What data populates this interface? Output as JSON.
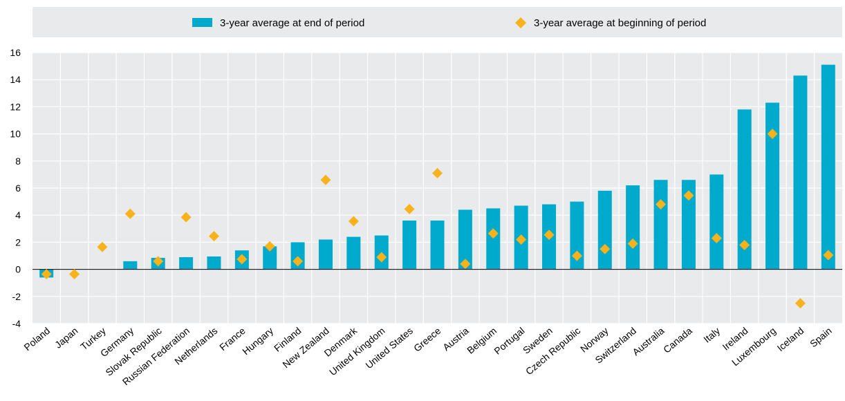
{
  "chart_data": {
    "type": "bar",
    "categories": [
      "Poland",
      "Japan",
      "Turkey",
      "Germany",
      "Slovak Republic",
      "Russian Federation",
      "Netherlands",
      "France",
      "Hungary",
      "Finland",
      "New Zealand",
      "Denmark",
      "United Kingdom",
      "United States",
      "Greece",
      "Austria",
      "Belgium",
      "Portugal",
      "Sweden",
      "Czech Republic",
      "Norway",
      "Switzerland",
      "Australia",
      "Canada",
      "Italy",
      "Ireland",
      "Luxembourg",
      "Iceland",
      "Spain"
    ],
    "series": [
      {
        "name": "3-year average at end of period",
        "mark": "bar",
        "color": "#00aacc",
        "values": [
          -0.6,
          null,
          null,
          0.6,
          0.85,
          0.9,
          0.95,
          1.4,
          1.7,
          2.0,
          2.2,
          2.4,
          2.5,
          3.6,
          3.6,
          4.4,
          4.5,
          4.7,
          4.8,
          5.0,
          5.8,
          6.2,
          6.6,
          6.6,
          7.0,
          11.8,
          12.3,
          14.3,
          15.1
        ]
      },
      {
        "name": "3-year average at beginning of period",
        "mark": "diamond",
        "color": "#f8b21c",
        "values": [
          -0.35,
          -0.35,
          1.65,
          4.1,
          0.6,
          3.85,
          2.45,
          0.75,
          1.7,
          0.6,
          6.6,
          3.55,
          0.9,
          4.45,
          7.1,
          0.4,
          2.65,
          2.2,
          2.55,
          1.0,
          1.5,
          1.9,
          4.8,
          5.45,
          2.3,
          1.8,
          10.0,
          -2.5,
          1.05
        ]
      }
    ],
    "yticks": [
      16,
      14,
      12,
      10,
      8,
      6,
      4,
      2,
      0,
      -2,
      -4
    ],
    "ylim": [
      -4,
      16
    ],
    "grid": true,
    "legend_position": "top",
    "plot_background": "#e9eaeb"
  }
}
